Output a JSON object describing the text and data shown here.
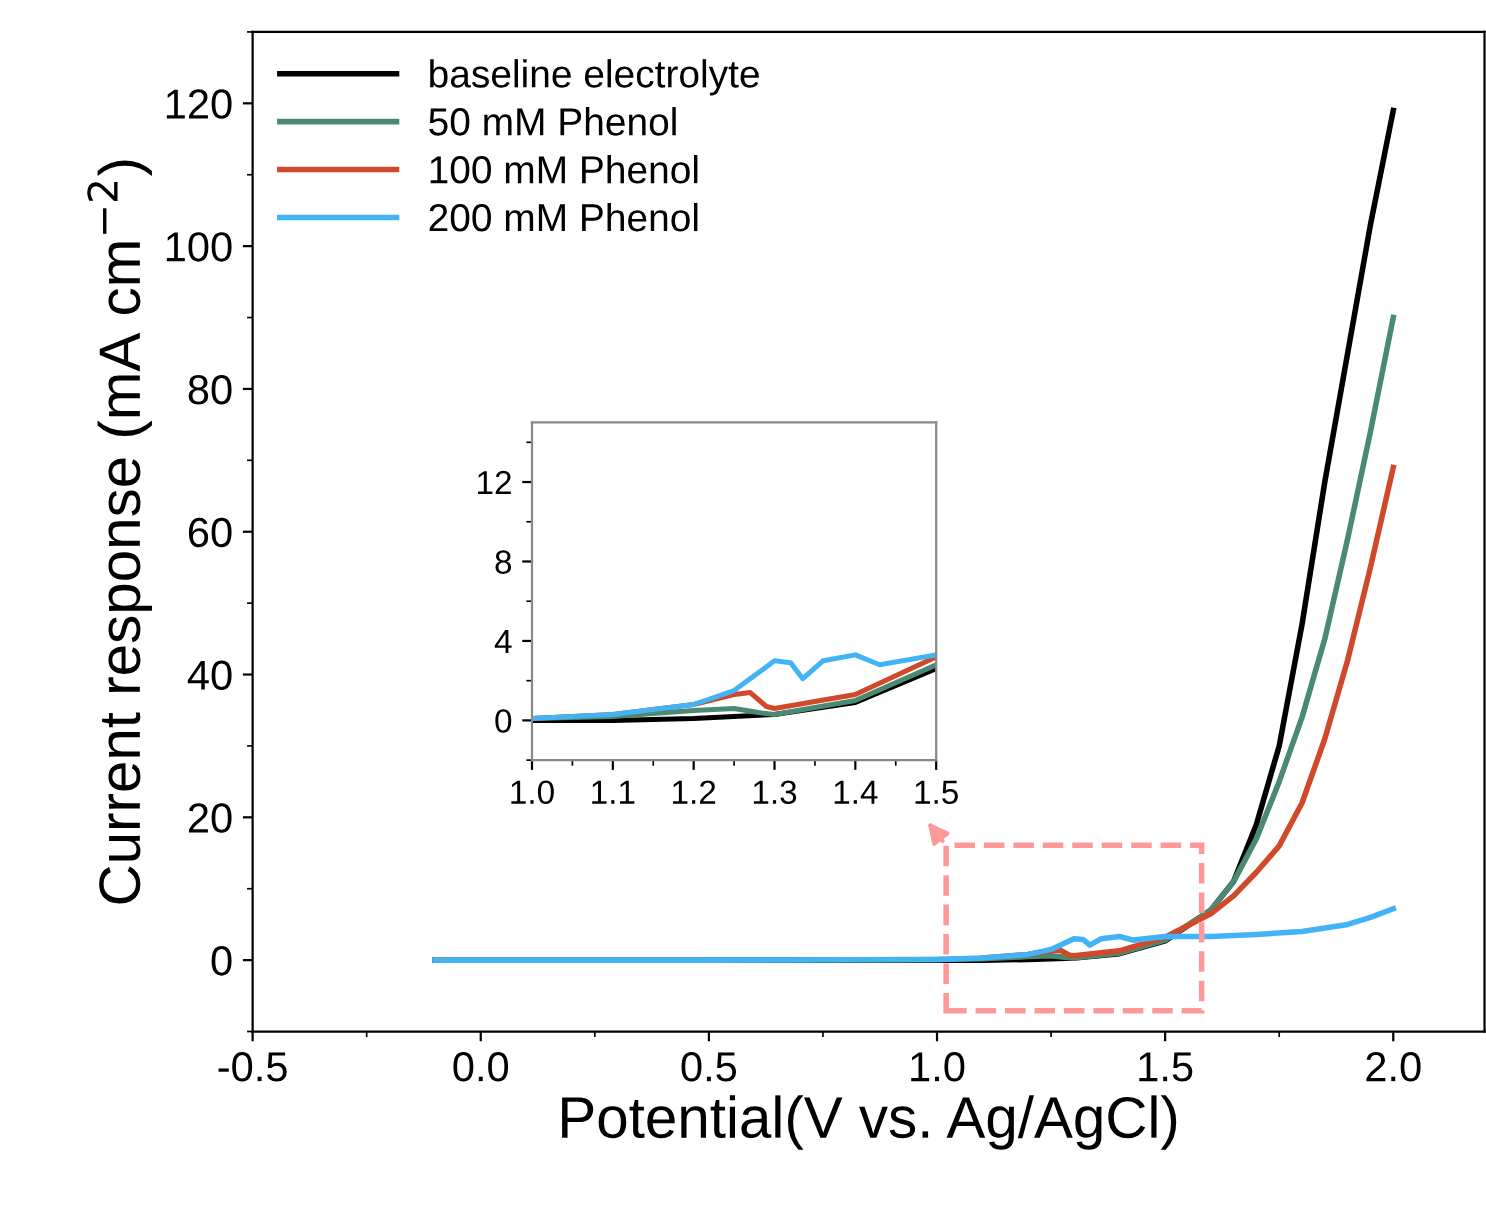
{
  "chart_data": [
    {
      "type": "line",
      "xlabel": "Potential(V vs. Ag/AgCl)",
      "ylabel": "Current response (mA cm$^{−2}$)",
      "xlim": [
        -0.5,
        2.2
      ],
      "xticks": [
        {
          "value": -0.5,
          "label": "-0.5"
        },
        {
          "value": 0.0,
          "label": "0.0"
        },
        {
          "value": 0.5,
          "label": "0.5"
        },
        {
          "value": 1.0,
          "label": "1.0"
        },
        {
          "value": 1.5,
          "label": "1.5"
        },
        {
          "value": 2.0,
          "label": "2.0"
        }
      ],
      "ylim": [
        -10,
        130
      ],
      "yticks": [
        0,
        20,
        40,
        60,
        80,
        100,
        120
      ],
      "grid": false,
      "legend": "top left",
      "line_style": "solid",
      "marker": "none",
      "series": [
        {
          "name": "baseline electrolyte",
          "color": "#000000",
          "x": [
            -0.1,
            0.5,
            1.0,
            1.1,
            1.2,
            1.3,
            1.4,
            1.5,
            1.6,
            1.65,
            1.7,
            1.75,
            1.8,
            1.85,
            1.9,
            1.95,
            2.0
          ],
          "values": [
            0,
            0,
            0,
            0,
            0.1,
            0.3,
            0.9,
            2.7,
            7,
            11,
            19,
            30,
            47,
            67,
            85,
            103,
            119
          ]
        },
        {
          "name": "50 mM Phenol",
          "color": "#4a8a72",
          "x": [
            -0.1,
            0.5,
            1.0,
            1.1,
            1.2,
            1.25,
            1.28,
            1.3,
            1.4,
            1.5,
            1.6,
            1.65,
            1.7,
            1.75,
            1.8,
            1.85,
            1.9,
            1.95,
            2.0
          ],
          "values": [
            0,
            0,
            0.1,
            0.2,
            0.5,
            0.6,
            0.4,
            0.3,
            1.0,
            2.8,
            7,
            11,
            17,
            25,
            34,
            45,
            59,
            74,
            90
          ]
        },
        {
          "name": "100 mM Phenol",
          "color": "#d0492a",
          "x": [
            -0.1,
            0.5,
            1.0,
            1.1,
            1.2,
            1.25,
            1.27,
            1.29,
            1.3,
            1.4,
            1.5,
            1.6,
            1.65,
            1.7,
            1.75,
            1.8,
            1.85,
            1.9,
            1.95,
            2.0
          ],
          "values": [
            0,
            0,
            null,
            0.3,
            0.8,
            1.3,
            1.4,
            0.7,
            0.6,
            1.3,
            3.2,
            6.5,
            9,
            12.3,
            16,
            22,
            31,
            42,
            55,
            69
          ]
        },
        {
          "name": "200 mM Phenol",
          "color": "#42b4f5",
          "x": [
            -0.1,
            0.5,
            1.0,
            1.1,
            1.2,
            1.25,
            1.3,
            1.32,
            1.335,
            1.36,
            1.4,
            1.43,
            1.5,
            1.6,
            1.7,
            1.8,
            1.9,
            1.95,
            2.0
          ],
          "values": [
            0,
            0,
            0.1,
            0.3,
            0.8,
            1.5,
            3.0,
            2.9,
            2.1,
            3.0,
            3.3,
            2.8,
            3.3,
            3.3,
            3.6,
            4.0,
            5.0,
            6.0,
            7.2
          ]
        }
      ]
    },
    {
      "type": "line",
      "xlim": [
        1.0,
        1.5
      ],
      "xticks": [
        {
          "value": 1.0,
          "label": "1.0"
        },
        {
          "value": 1.1,
          "label": "1.1"
        },
        {
          "value": 1.2,
          "label": "1.2"
        },
        {
          "value": 1.3,
          "label": "1.3"
        },
        {
          "value": 1.4,
          "label": "1.4"
        },
        {
          "value": 1.5,
          "label": "1.5"
        }
      ],
      "ylim": [
        -2,
        15
      ],
      "yticks": [
        0,
        4,
        8,
        12
      ],
      "grid": false,
      "line_style": "solid",
      "marker": "none",
      "series": [
        {
          "color": "#000000",
          "x": [
            1.0,
            1.1,
            1.2,
            1.3,
            1.4,
            1.5
          ],
          "values": [
            0,
            0,
            0.1,
            0.3,
            0.9,
            2.6
          ]
        },
        {
          "color": "#4a8a72",
          "x": [
            1.0,
            1.1,
            1.2,
            1.25,
            1.28,
            1.3,
            1.4,
            1.5
          ],
          "values": [
            0.1,
            0.2,
            0.5,
            0.6,
            0.4,
            0.3,
            1.0,
            2.8
          ]
        },
        {
          "color": "#d0492a",
          "x": [
            1.0,
            1.1,
            1.2,
            1.25,
            1.27,
            1.29,
            1.3,
            1.4,
            1.5
          ],
          "values": [
            0.1,
            0.3,
            0.8,
            1.3,
            1.4,
            0.7,
            0.6,
            1.3,
            3.2
          ]
        },
        {
          "color": "#42b4f5",
          "x": [
            1.0,
            1.1,
            1.2,
            1.25,
            1.3,
            1.32,
            1.335,
            1.36,
            1.4,
            1.43,
            1.5
          ],
          "values": [
            0.1,
            0.3,
            0.8,
            1.5,
            3.0,
            2.9,
            2.1,
            3.0,
            3.3,
            2.8,
            3.3
          ]
        }
      ]
    }
  ]
}
